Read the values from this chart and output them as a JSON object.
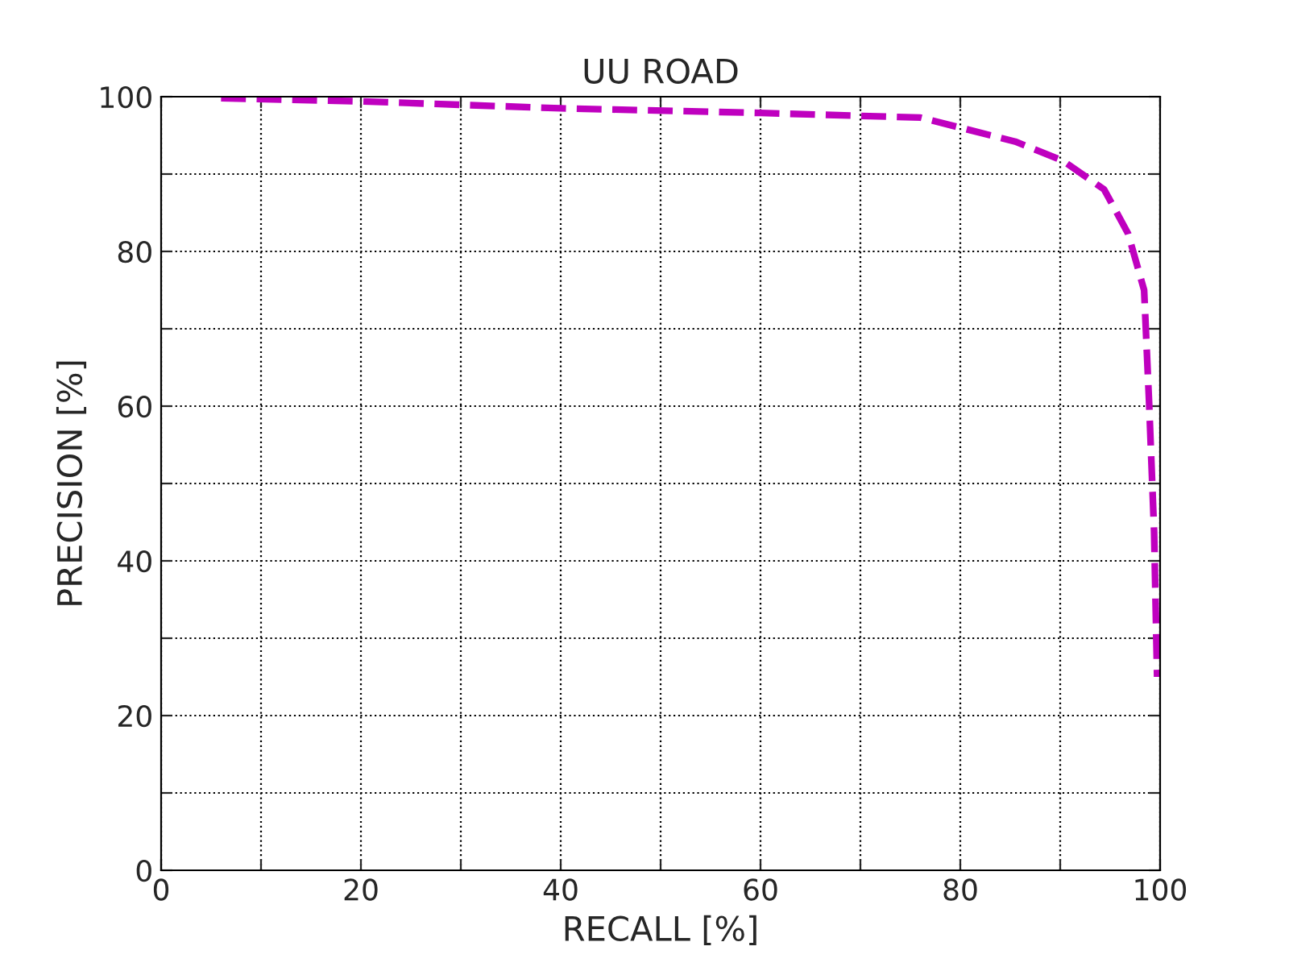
{
  "chart_data": {
    "type": "line",
    "title": "UU ROAD",
    "xlabel": "RECALL [%]",
    "ylabel": "PRECISION [%]",
    "series": [
      {
        "color": "#bf00bf",
        "x": [
          6,
          20,
          40,
          60,
          76,
          80,
          85.5,
          90.3,
          94.4,
          96.8,
          98.4,
          98.9,
          99.4,
          99.7
        ],
        "values": [
          99.8,
          99.4,
          98.5,
          97.9,
          97.3,
          96,
          94.2,
          91.7,
          88,
          82.3,
          75,
          60.4,
          43.8,
          25
        ]
      }
    ],
    "xlim": [
      0,
      100
    ],
    "ylim": [
      0,
      100
    ],
    "xticks": [
      0,
      {
        "value": 10,
        "label": null
      },
      20,
      {
        "value": 30,
        "label": null
      },
      40,
      {
        "value": 50,
        "label": null
      },
      60,
      {
        "value": 70,
        "label": null
      },
      80,
      {
        "value": 90,
        "label": null
      },
      100
    ],
    "yticks": [
      0,
      {
        "value": 10,
        "label": null
      },
      20,
      {
        "value": 30,
        "label": null
      },
      40,
      {
        "value": 50,
        "label": null
      },
      60,
      {
        "value": 70,
        "label": null
      },
      80,
      {
        "value": 90,
        "label": null
      },
      100
    ],
    "grid": true,
    "line_style": "dashed",
    "marker": "none",
    "legend": false
  }
}
